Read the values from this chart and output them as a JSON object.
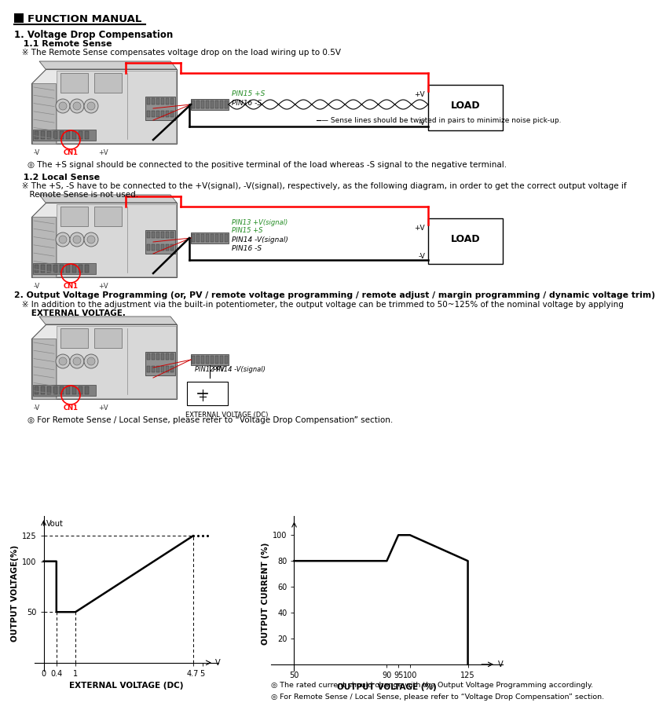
{
  "title": "FUNCTION MANUAL",
  "bg_color": "#ffffff",
  "section1_title": "1. Voltage Drop Compensation",
  "section1_1_title": "   1.1 Remote Sense",
  "section1_1_note": "   ※ The Remote Sense compensates voltage drop on the load wiring up to 0.5V",
  "sense_note": "— Sense lines should be twisted in pairs to minimize noise pick-up.",
  "circle_note1": "◎ The +S signal should be connected to the positive terminal of the load whereas -S signal to the negative terminal.",
  "section1_2_title": "   1.2 Local Sense",
  "section1_2_note1": "   ※ The +S, -S have to be connected to the +V(signal), -V(signal), respectively, as the following diagram, in order to get the correct output voltage if",
  "section1_2_note2": "      Remote Sense is not used.",
  "section2_title": "2. Output Voltage Programming (or, PV / remote voltage programming / remote adjust / margin programming / dynamic voltage trim)",
  "section2_note1": "   ※ In addition to the adjustment via the built-in potentiometer, the output voltage can be trimmed to 50~125% of the nominal voltage by applying",
  "section2_note2": "      EXTERNAL VOLTAGE.",
  "circle_note2": "◎ For Remote Sense / Local Sense, please refer to “Voltage Drop Compensation” section.",
  "graph1_xlabel": "EXTERNAL VOLTAGE (DC)",
  "graph1_ylabel": "OUTPUT VOLTAGE(%)",
  "graph1_vout": "Vout",
  "graph2_xlabel": "OUTPUT VOLTAGE (%)",
  "graph2_ylabel": "OUTPUT CURRENT (%)",
  "note_rated": "◎ The rated current should change with the Output Voltage Programming accordingly.",
  "note_local": "◎ For Remote Sense / Local Sense, please refer to “Voltage Drop Compensation” section."
}
